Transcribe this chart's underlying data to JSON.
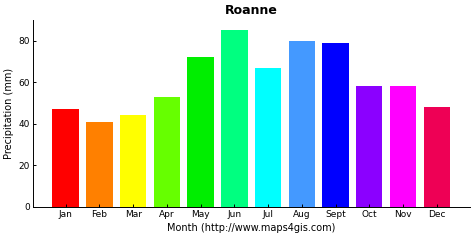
{
  "title": "Roanne",
  "xlabel": "Month (http://www.maps4gis.com)",
  "ylabel": "Precipitation (mm)",
  "months": [
    "Jan",
    "Feb",
    "Mar",
    "Apr",
    "May",
    "Jun",
    "Jul",
    "Aug",
    "Sept",
    "Oct",
    "Nov",
    "Dec"
  ],
  "values": [
    47,
    41,
    44,
    53,
    72,
    85,
    67,
    80,
    79,
    58,
    58,
    48
  ],
  "colors": [
    "#FF0000",
    "#FF8000",
    "#FFFF00",
    "#66FF00",
    "#00EE00",
    "#00FF80",
    "#00FFFF",
    "#4499FF",
    "#0000FF",
    "#8B00FF",
    "#FF00FF",
    "#EE0055"
  ],
  "ylim": [
    0,
    90
  ],
  "yticks": [
    0,
    20,
    40,
    60,
    80
  ],
  "background_color": "#FFFFFF",
  "title_fontsize": 9,
  "label_fontsize": 7,
  "tick_fontsize": 6.5
}
